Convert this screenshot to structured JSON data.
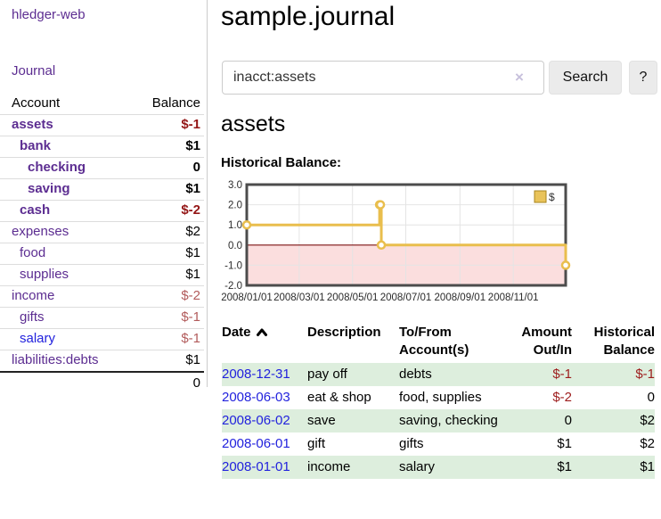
{
  "theme": {
    "link_purple": "#5c2d91",
    "link_blue": "#2222dd",
    "negative_strong": "#941717",
    "negative_soft": "#b25b5b",
    "table_stripe_green": "#ddeedd",
    "button_gray": "#ebebeb"
  },
  "app": {
    "title": "hledger-web"
  },
  "sidebar": {
    "journal_label": "Journal",
    "accounts": {
      "header_account": "Account",
      "header_balance": "Balance",
      "rows": [
        {
          "name": "assets",
          "balance": "$-1",
          "depth": 1,
          "in_account": true,
          "balance_tone": "neg-strong"
        },
        {
          "name": "bank",
          "balance": "$1",
          "depth": 2,
          "in_account": true,
          "balance_tone": "pos"
        },
        {
          "name": "checking",
          "balance": "0",
          "depth": 3,
          "in_account": true,
          "balance_tone": "pos"
        },
        {
          "name": "saving",
          "balance": "$1",
          "depth": 3,
          "in_account": true,
          "balance_tone": "pos"
        },
        {
          "name": "cash",
          "balance": "$-2",
          "depth": 2,
          "in_account": true,
          "balance_tone": "neg-strong"
        },
        {
          "name": "expenses",
          "balance": "$2",
          "depth": 1,
          "in_account": false,
          "balance_tone": "pos"
        },
        {
          "name": "food",
          "balance": "$1",
          "depth": 2,
          "in_account": false,
          "balance_tone": "pos"
        },
        {
          "name": "supplies",
          "balance": "$1",
          "depth": 2,
          "in_account": false,
          "balance_tone": "pos"
        },
        {
          "name": "income",
          "balance": "$-2",
          "depth": 1,
          "in_account": false,
          "balance_tone": "neg-soft"
        },
        {
          "name": "gifts",
          "balance": "$-1",
          "depth": 2,
          "in_account": false,
          "balance_tone": "neg-soft"
        },
        {
          "name": "salary",
          "balance": "$-1",
          "depth": 2,
          "in_account": false,
          "balance_tone": "neg-soft",
          "unvisited": true
        },
        {
          "name": "liabilities:debts",
          "balance": "$1",
          "depth": 1,
          "in_account": false,
          "balance_tone": "pos"
        }
      ],
      "total": "0"
    }
  },
  "main": {
    "title": "sample.journal",
    "search": {
      "value": "inacct:assets",
      "clear_icon": "×",
      "button_label": "Search",
      "help_label": "?"
    },
    "account_heading": "assets",
    "chart_title": "Historical Balance:"
  },
  "chart_data": {
    "type": "line",
    "step": true,
    "title": "Historical Balance",
    "legend": [
      {
        "label": "$",
        "color": "#e9c35a"
      }
    ],
    "legend_position": "top-right",
    "grid": true,
    "x_range": [
      "2008-01-01",
      "2008-12-31"
    ],
    "ylim": [
      -2,
      3
    ],
    "y_ticks": [
      "3.0",
      "2.0",
      "1.0",
      "0.0",
      "-1.0",
      "-2.0"
    ],
    "x_ticks": [
      {
        "label": "2008/01/01",
        "date": "2008-01-01"
      },
      {
        "label": "2008/03/01",
        "date": "2008-03-01"
      },
      {
        "label": "2008/05/01",
        "date": "2008-05-01"
      },
      {
        "label": "2008/07/01",
        "date": "2008-07-01"
      },
      {
        "label": "2008/09/01",
        "date": "2008-09-01"
      },
      {
        "label": "2008/11/01",
        "date": "2008-11-01"
      }
    ],
    "series": [
      {
        "name": "$",
        "points": [
          {
            "date": "2008-01-01",
            "value": 1
          },
          {
            "date": "2008-06-01",
            "value": 2
          },
          {
            "date": "2008-06-02",
            "value": 2
          },
          {
            "date": "2008-06-03",
            "value": 0
          },
          {
            "date": "2008-12-31",
            "value": -1
          }
        ]
      }
    ],
    "colors": {
      "line": "#e9be4d",
      "marker_fill": "#ffffff",
      "negative_fill": "#fbdede",
      "zero_line": "#7d1111",
      "grid": "#e4e4e4",
      "border": "#4c4c4c"
    }
  },
  "transactions": {
    "headers": {
      "date": "Date",
      "description": "Description",
      "accounts": "To/From Account(s)",
      "amount": "Amount Out/In",
      "balance": "Historical Balance"
    },
    "sort_icon": "chevron-up",
    "rows": [
      {
        "date": "2008-12-31",
        "description": "pay off",
        "accounts": "debts",
        "amount": "$-1",
        "balance": "$-1",
        "amount_neg": true,
        "balance_neg": true,
        "shaded": true
      },
      {
        "date": "2008-06-03",
        "description": "eat & shop",
        "accounts": "food, supplies",
        "amount": "$-2",
        "balance": "0",
        "amount_neg": true,
        "balance_neg": false,
        "shaded": false
      },
      {
        "date": "2008-06-02",
        "description": "save",
        "accounts": "saving, checking",
        "amount": "0",
        "balance": "$2",
        "amount_neg": false,
        "balance_neg": false,
        "shaded": true
      },
      {
        "date": "2008-06-01",
        "description": "gift",
        "accounts": "gifts",
        "amount": "$1",
        "balance": "$2",
        "amount_neg": false,
        "balance_neg": false,
        "shaded": false
      },
      {
        "date": "2008-01-01",
        "description": "income",
        "accounts": "salary",
        "amount": "$1",
        "balance": "$1",
        "amount_neg": false,
        "balance_neg": false,
        "shaded": true
      }
    ]
  }
}
